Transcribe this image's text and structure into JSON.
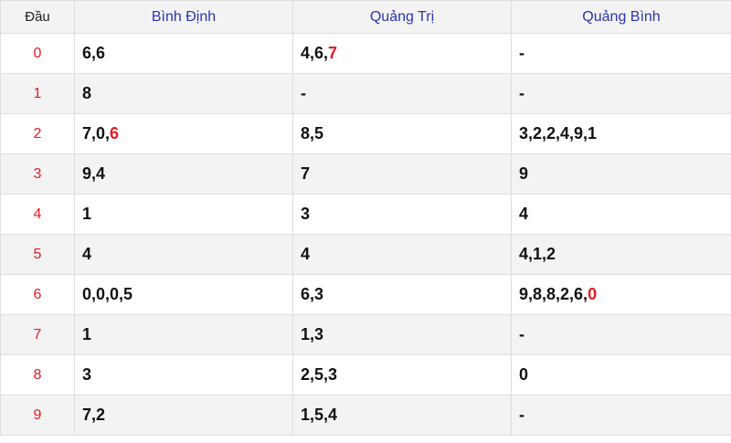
{
  "headers": {
    "dau": "Đầu",
    "col1": "Bình Định",
    "col2": "Quảng Trị",
    "col3": "Quảng Bình"
  },
  "highlight_color": "#e11b22",
  "rows": [
    {
      "head": "0",
      "c1": {
        "text": "6,6",
        "red": ""
      },
      "c2": {
        "text": "4,6,",
        "red": "7"
      },
      "c3": {
        "text": "-",
        "red": ""
      }
    },
    {
      "head": "1",
      "c1": {
        "text": "8",
        "red": ""
      },
      "c2": {
        "text": "-",
        "red": ""
      },
      "c3": {
        "text": "-",
        "red": ""
      }
    },
    {
      "head": "2",
      "c1": {
        "text": "7,0,",
        "red": "6"
      },
      "c2": {
        "text": "8,5",
        "red": ""
      },
      "c3": {
        "text": "3,2,2,4,9,1",
        "red": ""
      }
    },
    {
      "head": "3",
      "c1": {
        "text": "9,4",
        "red": ""
      },
      "c2": {
        "text": "7",
        "red": ""
      },
      "c3": {
        "text": "9",
        "red": ""
      }
    },
    {
      "head": "4",
      "c1": {
        "text": "1",
        "red": ""
      },
      "c2": {
        "text": "3",
        "red": ""
      },
      "c3": {
        "text": "4",
        "red": ""
      }
    },
    {
      "head": "5",
      "c1": {
        "text": "4",
        "red": ""
      },
      "c2": {
        "text": "4",
        "red": ""
      },
      "c3": {
        "text": "4,1,2",
        "red": ""
      }
    },
    {
      "head": "6",
      "c1": {
        "text": "0,0,0,5",
        "red": ""
      },
      "c2": {
        "text": "6,3",
        "red": ""
      },
      "c3": {
        "text": "9,8,8,2,6,",
        "red": "0"
      }
    },
    {
      "head": "7",
      "c1": {
        "text": "1",
        "red": ""
      },
      "c2": {
        "text": "1,3",
        "red": ""
      },
      "c3": {
        "text": "-",
        "red": ""
      }
    },
    {
      "head": "8",
      "c1": {
        "text": "3",
        "red": ""
      },
      "c2": {
        "text": "2,5,3",
        "red": ""
      },
      "c3": {
        "text": "0",
        "red": ""
      }
    },
    {
      "head": "9",
      "c1": {
        "text": "7,2",
        "red": ""
      },
      "c2": {
        "text": "1,5,4",
        "red": ""
      },
      "c3": {
        "text": "-",
        "red": ""
      }
    }
  ]
}
